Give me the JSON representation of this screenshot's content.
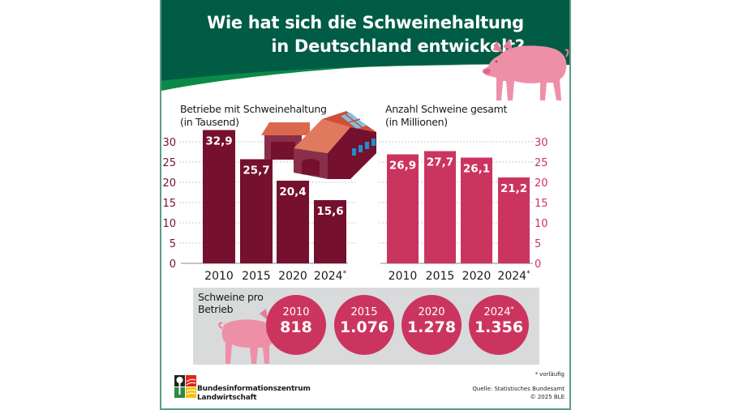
{
  "header": {
    "title_line1": "Wie hat sich die Schweinehaltung",
    "title_line2": "in Deutschland entwickelt?"
  },
  "colors": {
    "header_green": "#005c45",
    "accent_green": "#0a8a46",
    "farms_bar": "#75102e",
    "pigs_bar": "#cc3460",
    "axis_farms": "#75102e",
    "axis_pigs": "#cc3460",
    "panel_gray": "#d8dadb"
  },
  "chart_data": [
    {
      "type": "bar",
      "title": "Betriebe mit Schweinehaltung",
      "subtitle": "(in Tausend)",
      "categories": [
        "2010",
        "2015",
        "2020",
        "2024*"
      ],
      "values": [
        32.9,
        25.7,
        20.4,
        15.6
      ],
      "value_labels": [
        "32,9",
        "25,7",
        "20,4",
        "15,6"
      ],
      "ylim": [
        0,
        30
      ],
      "yticks": [
        0,
        5,
        10,
        15,
        20,
        25,
        30
      ],
      "yaxis_side": "left",
      "grid": true,
      "color": "#75102e"
    },
    {
      "type": "bar",
      "title": "Anzahl Schweine gesamt",
      "subtitle": "(in Millionen)",
      "categories": [
        "2010",
        "2015",
        "2020",
        "2024*"
      ],
      "values": [
        26.9,
        27.7,
        26.1,
        21.2
      ],
      "value_labels": [
        "26,9",
        "27,7",
        "26,1",
        "21,2"
      ],
      "ylim": [
        0,
        30
      ],
      "yticks": [
        0,
        5,
        10,
        15,
        20,
        25,
        30
      ],
      "yaxis_side": "right",
      "grid": true,
      "color": "#cc3460"
    }
  ],
  "per_farm": {
    "label_line1": "Schweine pro",
    "label_line2": "Betrieb",
    "items": [
      {
        "year": "2010",
        "star": "",
        "value": "818"
      },
      {
        "year": "2015",
        "star": "",
        "value": "1.076"
      },
      {
        "year": "2020",
        "star": "",
        "value": "1.278"
      },
      {
        "year": "2024",
        "star": "*",
        "value": "1.356"
      }
    ]
  },
  "footer": {
    "note": "* vorläufig",
    "source": "Quelle: Statistisches Bundesamt",
    "copyright": "© 2025 BLE",
    "org_line1": "Bundesinformationszentrum",
    "org_line2": "Landwirtschaft"
  }
}
